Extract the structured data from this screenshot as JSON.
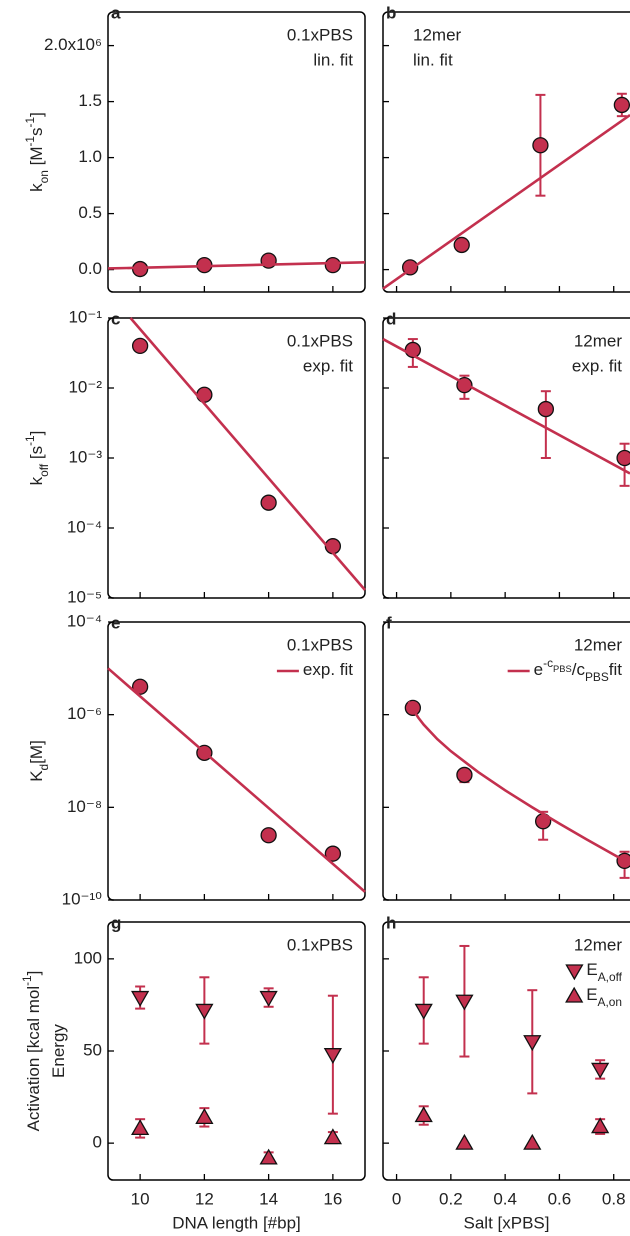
{
  "chart_data": [
    {
      "type": "scatter",
      "label": "a",
      "xlim": [
        9,
        17
      ],
      "xticks": [
        10,
        12,
        14,
        16
      ],
      "show_xtick_labels": false,
      "ylim": [
        -0.2,
        2.3
      ],
      "yticks": [
        {
          "value": 0,
          "label": "0.0"
        },
        0.5,
        {
          "value": 1,
          "label": "1.0"
        },
        1.5,
        {
          "value": 2,
          "label": "2.0x10⁶"
        }
      ],
      "show_ytick_labels": true,
      "ylabel": [
        [
          {
            "text": "k"
          },
          {
            "text": "on",
            "shift": "sub"
          },
          {
            "text": " [M"
          },
          {
            "text": "-1",
            "shift": "super"
          },
          {
            "text": "s"
          },
          {
            "text": "-1",
            "shift": "super"
          },
          {
            "text": "]"
          }
        ]
      ],
      "annotations": [
        "0.1xPBS",
        "lin. fit"
      ],
      "annotation_corner": "top-right",
      "series": [
        {
          "style": "marker",
          "marker": "circle",
          "color": "#c3304e",
          "x": [
            10,
            12,
            14,
            16
          ],
          "values": [
            0.005,
            0.04,
            0.08,
            0.04
          ]
        },
        {
          "style": "line",
          "color": "#c3304e",
          "x": [
            9,
            17
          ],
          "values": [
            0.01,
            0.065
          ]
        }
      ]
    },
    {
      "type": "scatter",
      "label": "b",
      "xlim": [
        -0.05,
        0.86
      ],
      "xticks": [
        0,
        0.2,
        0.4,
        0.6,
        0.8
      ],
      "show_xtick_labels": false,
      "ylim": [
        -0.2,
        2.3
      ],
      "yticks": [
        {
          "value": 0,
          "label": "0.0"
        },
        0.5,
        {
          "value": 1,
          "label": "1.0"
        },
        1.5,
        {
          "value": 2,
          "label": "2.0x10⁶"
        }
      ],
      "show_ytick_labels": false,
      "annotations": [
        "12mer",
        "lin. fit"
      ],
      "annotation_corner": "top-left",
      "series": [
        {
          "style": "marker",
          "marker": "circle",
          "color": "#c3304e",
          "x": [
            0.05,
            0.24,
            0.53,
            0.83
          ],
          "values": [
            0.02,
            0.22,
            1.11,
            1.47
          ],
          "errors": [
            null,
            null,
            0.45,
            0.1
          ]
        },
        {
          "style": "line",
          "color": "#c3304e",
          "x": [
            -0.05,
            0.86
          ],
          "values": [
            -0.17,
            1.38
          ]
        }
      ]
    },
    {
      "type": "scatter",
      "label": "c",
      "xlim": [
        9,
        17
      ],
      "xticks": [
        10,
        12,
        14,
        16
      ],
      "show_xtick_labels": false,
      "log_y": true,
      "ylim": [
        1e-05,
        0.1
      ],
      "yticks": [
        {
          "value": 0.1,
          "label": "10⁻¹"
        },
        {
          "value": 0.01,
          "label": "10⁻²"
        },
        {
          "value": 0.001,
          "label": "10⁻³"
        },
        {
          "value": 0.0001,
          "label": "10⁻⁴"
        },
        {
          "value": 1e-05,
          "label": "10⁻⁵"
        }
      ],
      "show_ytick_labels": true,
      "ylabel": [
        [
          {
            "text": "k"
          },
          {
            "text": "off",
            "shift": "sub"
          },
          {
            "text": " [s"
          },
          {
            "text": "-1",
            "shift": "super"
          },
          {
            "text": "]"
          }
        ]
      ],
      "annotations": [
        "0.1xPBS",
        "exp. fit"
      ],
      "annotation_corner": "top-right",
      "series": [
        {
          "style": "marker",
          "marker": "circle",
          "color": "#c3304e",
          "x": [
            10,
            12,
            14,
            16
          ],
          "values": [
            0.04,
            0.008,
            0.00023,
            5.5e-05
          ]
        },
        {
          "style": "line",
          "color": "#c3304e",
          "x": [
            9.7,
            17
          ],
          "values": [
            0.1,
            1.3e-05
          ]
        }
      ]
    },
    {
      "type": "scatter",
      "label": "d",
      "xlim": [
        -0.05,
        0.86
      ],
      "xticks": [
        0,
        0.2,
        0.4,
        0.6,
        0.8
      ],
      "show_xtick_labels": false,
      "log_y": true,
      "ylim": [
        1e-05,
        0.1
      ],
      "yticks": [
        {
          "value": 0.1,
          "label": "10⁻¹"
        },
        {
          "value": 0.01,
          "label": "10⁻²"
        },
        {
          "value": 0.001,
          "label": "10⁻³"
        },
        {
          "value": 0.0001,
          "label": "10⁻⁴"
        },
        {
          "value": 1e-05,
          "label": "10⁻⁵"
        }
      ],
      "show_ytick_labels": false,
      "annotations": [
        "12mer",
        "exp. fit"
      ],
      "annotation_corner": "top-right",
      "series": [
        {
          "style": "marker",
          "marker": "circle",
          "color": "#c3304e",
          "x": [
            0.06,
            0.25,
            0.55,
            0.84
          ],
          "values": [
            0.035,
            0.011,
            0.005,
            0.001
          ],
          "errors": [
            0.015,
            0.004,
            0.004,
            0.0006
          ]
        },
        {
          "style": "line",
          "color": "#c3304e",
          "x": [
            -0.05,
            0.86
          ],
          "values": [
            0.05,
            0.0006
          ]
        }
      ]
    },
    {
      "type": "scatter",
      "label": "e",
      "xlim": [
        9,
        17
      ],
      "xticks": [
        10,
        12,
        14,
        16
      ],
      "show_xtick_labels": false,
      "log_y": true,
      "ylim": [
        1e-10,
        0.0001
      ],
      "yticks": [
        {
          "value": 0.0001,
          "label": "10⁻⁴"
        },
        {
          "value": 1e-06,
          "label": "10⁻⁶"
        },
        {
          "value": 1e-08,
          "label": "10⁻⁸"
        },
        {
          "value": 1e-10,
          "label": "10⁻¹⁰"
        }
      ],
      "show_ytick_labels": true,
      "ylabel": [
        [
          {
            "text": "K"
          },
          {
            "text": "d",
            "shift": "sub"
          },
          {
            "text": "[M]"
          }
        ]
      ],
      "annotations": [
        "0.1xPBS"
      ],
      "annotation_corner": "top-right",
      "series": [
        {
          "style": "marker",
          "marker": "circle",
          "color": "#c3304e",
          "x": [
            10,
            12,
            14,
            16
          ],
          "values": [
            4e-06,
            1.5e-07,
            2.5e-09,
            1e-09
          ]
        },
        {
          "style": "line",
          "color": "#c3304e",
          "name": [
            {
              "text": "exp. fit"
            }
          ],
          "x": [
            9,
            17
          ],
          "values": [
            1e-05,
            1.5e-10
          ]
        }
      ]
    },
    {
      "type": "scatter",
      "label": "f",
      "xlim": [
        -0.05,
        0.86
      ],
      "xticks": [
        0,
        0.2,
        0.4,
        0.6,
        0.8
      ],
      "show_xtick_labels": false,
      "log_y": true,
      "ylim": [
        1e-10,
        0.0001
      ],
      "yticks": [
        {
          "value": 0.0001,
          "label": "10⁻⁴"
        },
        {
          "value": 1e-06,
          "label": "10⁻⁶"
        },
        {
          "value": 1e-08,
          "label": "10⁻⁸"
        },
        {
          "value": 1e-10,
          "label": "10⁻¹⁰"
        }
      ],
      "show_ytick_labels": false,
      "annotations": [
        "12mer"
      ],
      "annotation_corner": "top-right",
      "series": [
        {
          "style": "marker",
          "marker": "circle",
          "color": "#c3304e",
          "x": [
            0.06,
            0.25,
            0.54,
            0.84
          ],
          "values": [
            1.4e-06,
            5e-08,
            5e-09,
            7e-10
          ],
          "errors": [
            null,
            1.5e-08,
            3e-09,
            4e-10
          ]
        },
        {
          "style": "line",
          "color": "#c3304e",
          "name": [
            {
              "text": "e"
            },
            {
              "text": "-c",
              "shift": "super"
            },
            {
              "text": "PBS",
              "shift": "supersub"
            },
            {
              "text": "/c"
            },
            {
              "text": "PBS",
              "shift": "sub"
            },
            {
              "text": "fit"
            }
          ],
          "x": [
            0.045,
            0.06,
            0.08,
            0.1,
            0.15,
            0.2,
            0.3,
            0.4,
            0.5,
            0.6,
            0.7,
            0.8,
            0.86
          ],
          "values": [
            1.91e-06,
            1.31e-06,
            8.64e-07,
            6.1e-07,
            2.97e-07,
            1.63e-07,
            5.81e-08,
            2.33e-08,
            9.97e-09,
            4.44e-09,
            2.04e-09,
            9.52e-10,
            6.08e-10
          ]
        }
      ]
    },
    {
      "type": "scatter",
      "label": "g",
      "xlim": [
        9,
        17
      ],
      "xticks": [
        10,
        12,
        14,
        16
      ],
      "show_xtick_labels": true,
      "xlabel": "DNA length [#bp]",
      "ylim": [
        -20,
        120
      ],
      "yticks": [
        0,
        50,
        100
      ],
      "show_ytick_labels": true,
      "ylabel": [
        [
          {
            "text": "Activation [kcal mol"
          },
          {
            "text": "-1",
            "shift": "super"
          },
          {
            "text": "]"
          }
        ],
        [
          {
            "text": "Energy"
          }
        ]
      ],
      "annotations": [
        "0.1xPBS"
      ],
      "annotation_corner": "top-right",
      "series": [
        {
          "style": "marker",
          "marker": "triangle-down",
          "color": "#c3304e",
          "x": [
            10,
            12,
            14,
            16
          ],
          "values": [
            79,
            72,
            79,
            48
          ],
          "errors": [
            6,
            18,
            5,
            32
          ]
        },
        {
          "style": "marker",
          "marker": "triangle-up",
          "color": "#c3304e",
          "x": [
            10,
            12,
            14,
            16
          ],
          "values": [
            8,
            14,
            -8,
            3
          ],
          "errors": [
            5,
            5,
            3,
            3
          ]
        }
      ]
    },
    {
      "type": "scatter",
      "label": "h",
      "xlim": [
        -0.05,
        0.86
      ],
      "xticks": [
        0,
        0.2,
        0.4,
        0.6,
        0.8
      ],
      "show_xtick_labels": true,
      "xlabel": "Salt [xPBS]",
      "ylim": [
        -20,
        120
      ],
      "yticks": [
        0,
        50,
        100
      ],
      "show_ytick_labels": false,
      "annotations": [
        "12mer"
      ],
      "annotation_corner": "top-right",
      "series": [
        {
          "style": "marker",
          "marker": "triangle-down",
          "color": "#c3304e",
          "name": [
            {
              "text": "E"
            },
            {
              "text": "A,off",
              "shift": "sub"
            }
          ],
          "x": [
            0.1,
            0.25,
            0.5,
            0.75
          ],
          "values": [
            72,
            77,
            55,
            40
          ],
          "errors": [
            18,
            30,
            28,
            5
          ]
        },
        {
          "style": "marker",
          "marker": "triangle-up",
          "color": "#c3304e",
          "name": [
            {
              "text": "E"
            },
            {
              "text": "A,on",
              "shift": "sub"
            }
          ],
          "x": [
            0.1,
            0.25,
            0.5,
            0.75
          ],
          "values": [
            15,
            0,
            0,
            9
          ],
          "errors": [
            5,
            null,
            null,
            4
          ]
        }
      ]
    }
  ]
}
